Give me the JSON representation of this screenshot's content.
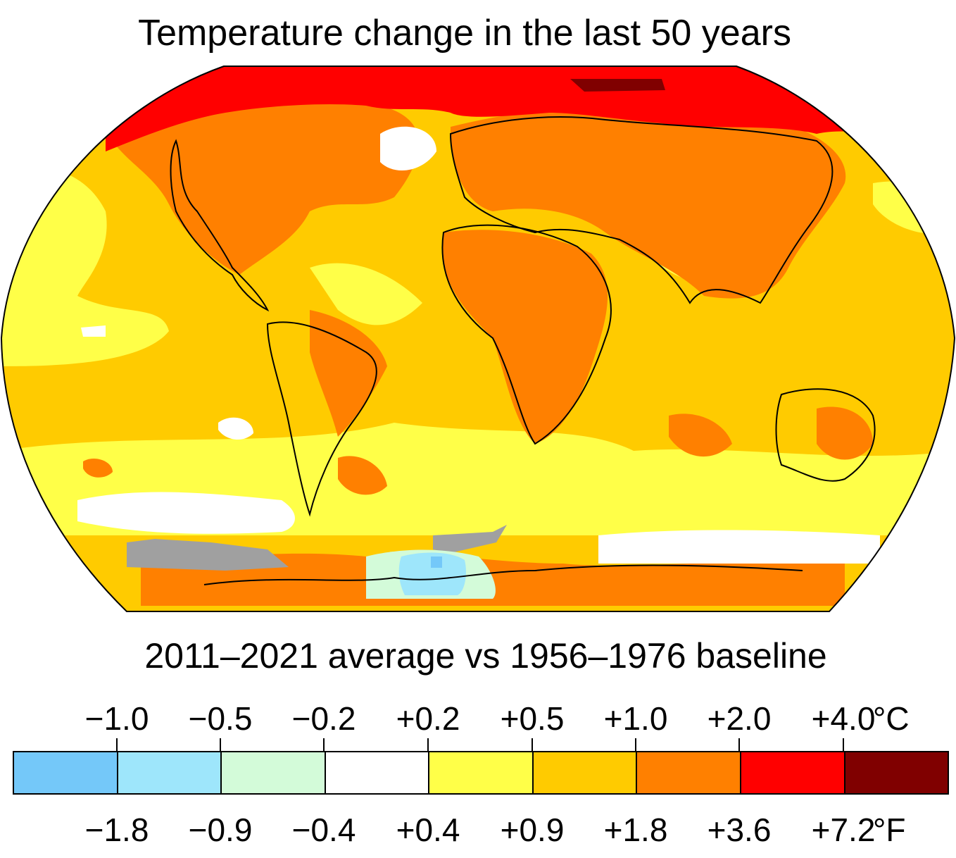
{
  "title": "Temperature change in the last 50 years",
  "subtitle": "2011–2021 average vs 1956–1976 baseline",
  "legend": {
    "celsius_ticks": [
      "−1.0",
      "−0.5",
      "−0.2",
      "+0.2",
      "+0.5",
      "+1.0",
      "+2.0",
      "+4.0"
    ],
    "celsius_unit": "°C",
    "fahrenheit_ticks": [
      "−1.8",
      "−0.9",
      "−0.4",
      "+0.4",
      "+0.9",
      "+1.8",
      "+3.6",
      "+7.2"
    ],
    "fahrenheit_unit": "°F",
    "colors": [
      "#74c8f9",
      "#9ee6fb",
      "#d3fbd9",
      "#ffffff",
      "#ffff48",
      "#ffcb00",
      "#ff8000",
      "#ff0000",
      "#800000"
    ],
    "no_data_color": "#a0a0a0"
  },
  "map": {
    "projection": "Robinson",
    "ocean_base_color": "#ffcb00"
  }
}
